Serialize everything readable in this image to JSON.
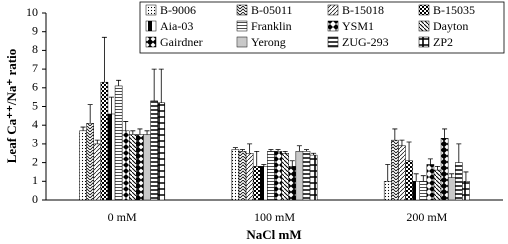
{
  "chart_data": {
    "type": "bar",
    "y_label": "Leaf Ca⁺⁺/Na⁺ ratio",
    "x_label": "NaCl mM",
    "categories": [
      "0 mM",
      "100 mM",
      "200 mM"
    ],
    "ylim": [
      0,
      10
    ],
    "yticks": [
      0,
      1,
      2,
      3,
      4,
      5,
      6,
      7,
      8,
      9,
      10
    ],
    "series": [
      {
        "name": "B-9006",
        "color": "#ffffff",
        "pattern": "dots",
        "values": [
          3.7,
          2.7,
          1.0
        ],
        "errors": [
          0.2,
          0.1,
          0.9
        ]
      },
      {
        "name": "B-05011",
        "color": "#ffffff",
        "pattern": "zigzag",
        "values": [
          4.1,
          2.6,
          3.2
        ],
        "errors": [
          1.0,
          0.1,
          0.6
        ]
      },
      {
        "name": "B-15018",
        "color": "#ffffff",
        "pattern": "diag",
        "values": [
          3.0,
          2.5,
          2.9
        ],
        "errors": [
          0.2,
          0.5,
          0.3
        ]
      },
      {
        "name": "B-15035",
        "color": "#555555",
        "pattern": "checker",
        "values": [
          6.3,
          1.8,
          2.1
        ],
        "errors": [
          2.4,
          0.8,
          1.0
        ]
      },
      {
        "name": "Aia-03",
        "color": "#000000",
        "pattern": "halfblack",
        "values": [
          4.6,
          1.8,
          1.0
        ],
        "errors": [
          0.9,
          0.1,
          0.4
        ]
      },
      {
        "name": "Franklin",
        "color": "#ffffff",
        "pattern": "hlines",
        "values": [
          6.1,
          2.6,
          1.0
        ],
        "errors": [
          0.3,
          0.1,
          0.3
        ]
      },
      {
        "name": "YSM1",
        "color": "#ffffff",
        "pattern": "bowtie",
        "values": [
          3.7,
          2.6,
          1.9
        ],
        "errors": [
          0.5,
          0.1,
          0.3
        ]
      },
      {
        "name": "Dayton",
        "color": "#ffffff",
        "pattern": "backdiag",
        "values": [
          3.5,
          2.5,
          1.6
        ],
        "errors": [
          0.2,
          0.1,
          0.2
        ]
      },
      {
        "name": "Gairdner",
        "color": "#000000",
        "pattern": "diamonds",
        "values": [
          3.5,
          1.8,
          3.3
        ],
        "errors": [
          0.3,
          0.3,
          0.5
        ]
      },
      {
        "name": "Yerong",
        "color": "#ffffff",
        "pattern": "vlines",
        "values": [
          3.5,
          2.6,
          1.2
        ],
        "errors": [
          0.2,
          0.3,
          0.2
        ]
      },
      {
        "name": "ZUG-293",
        "color": "#ffffff",
        "pattern": "hlinesheavy",
        "values": [
          5.3,
          2.6,
          2.0
        ],
        "errors": [
          1.7,
          0.1,
          1.0
        ]
      },
      {
        "name": "ZP2",
        "color": "#000000",
        "pattern": "plus",
        "values": [
          5.2,
          2.4,
          1.0
        ],
        "errors": [
          1.8,
          0.1,
          0.5
        ]
      }
    ]
  }
}
